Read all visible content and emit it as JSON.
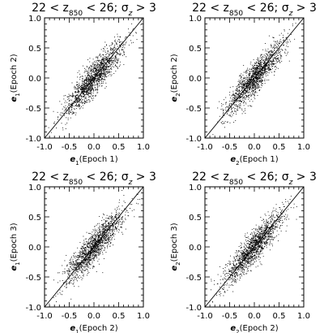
{
  "chart_data": [
    {
      "type": "scatter",
      "title": {
        "pre": "22 < z",
        "sub": "850",
        "mid": " < 26; σ",
        "sub2": "z",
        "post": " > 3"
      },
      "xlabel": {
        "var": "e",
        "sub": "1",
        "text": "(Epoch 1)"
      },
      "ylabel": {
        "var": "e",
        "sub": "1",
        "text": "(Epoch 2)"
      },
      "xlim": [
        -1.0,
        1.0
      ],
      "ylim": [
        -1.0,
        1.0
      ],
      "xticks": [
        "-1.0",
        "-0.5",
        "0.0",
        "0.5",
        "1.0"
      ],
      "yticks": [
        "-1.0",
        "-0.5",
        "0.0",
        "0.5",
        "1.0"
      ],
      "reference_line": "y = x",
      "points": {
        "count": 1500,
        "correlation": 0.9,
        "spread": 0.3
      }
    },
    {
      "type": "scatter",
      "title": {
        "pre": "22 < z",
        "sub": "850",
        "mid": " < 26; σ",
        "sub2": "z",
        "post": " > 3"
      },
      "xlabel": {
        "var": "e",
        "sub": "2",
        "text": "(Epoch 1)"
      },
      "ylabel": {
        "var": "e",
        "sub": "2",
        "text": "(Epoch 2)"
      },
      "xlim": [
        -1.0,
        1.0
      ],
      "ylim": [
        -1.0,
        1.0
      ],
      "xticks": [
        "-1.0",
        "-0.5",
        "0.0",
        "0.5",
        "1.0"
      ],
      "yticks": [
        "-1.0",
        "-0.5",
        "0.0",
        "0.5",
        "1.0"
      ],
      "reference_line": "y = x",
      "points": {
        "count": 1500,
        "correlation": 0.9,
        "spread": 0.3
      }
    },
    {
      "type": "scatter",
      "title": {
        "pre": "22 < z",
        "sub": "850",
        "mid": " < 26; σ",
        "sub2": "z",
        "post": " > 3"
      },
      "xlabel": {
        "var": "e",
        "sub": "1",
        "text": "(Epoch 2)"
      },
      "ylabel": {
        "var": "e",
        "sub": "1",
        "text": "(Epoch 3)"
      },
      "xlim": [
        -1.0,
        1.0
      ],
      "ylim": [
        -1.0,
        1.0
      ],
      "xticks": [
        "-1.0",
        "-0.5",
        "0.0",
        "0.5",
        "1.0"
      ],
      "yticks": [
        "-1.0",
        "-0.5",
        "0.0",
        "0.5",
        "1.0"
      ],
      "reference_line": "y = x",
      "points": {
        "count": 1500,
        "correlation": 0.9,
        "spread": 0.3
      }
    },
    {
      "type": "scatter",
      "title": {
        "pre": "22 < z",
        "sub": "850",
        "mid": " < 26; σ",
        "sub2": "z",
        "post": " > 3"
      },
      "xlabel": {
        "var": "e",
        "sub": "2",
        "text": "(Epoch 2)"
      },
      "ylabel": {
        "var": "e",
        "sub": "2",
        "text": "(Epoch 3)"
      },
      "xlim": [
        -1.0,
        1.0
      ],
      "ylim": [
        -1.0,
        1.0
      ],
      "xticks": [
        "-1.0",
        "-0.5",
        "0.0",
        "0.5",
        "1.0"
      ],
      "yticks": [
        "-1.0",
        "-0.5",
        "0.0",
        "0.5",
        "1.0"
      ],
      "reference_line": "y = x",
      "points": {
        "count": 1500,
        "correlation": 0.9,
        "spread": 0.3
      }
    }
  ]
}
